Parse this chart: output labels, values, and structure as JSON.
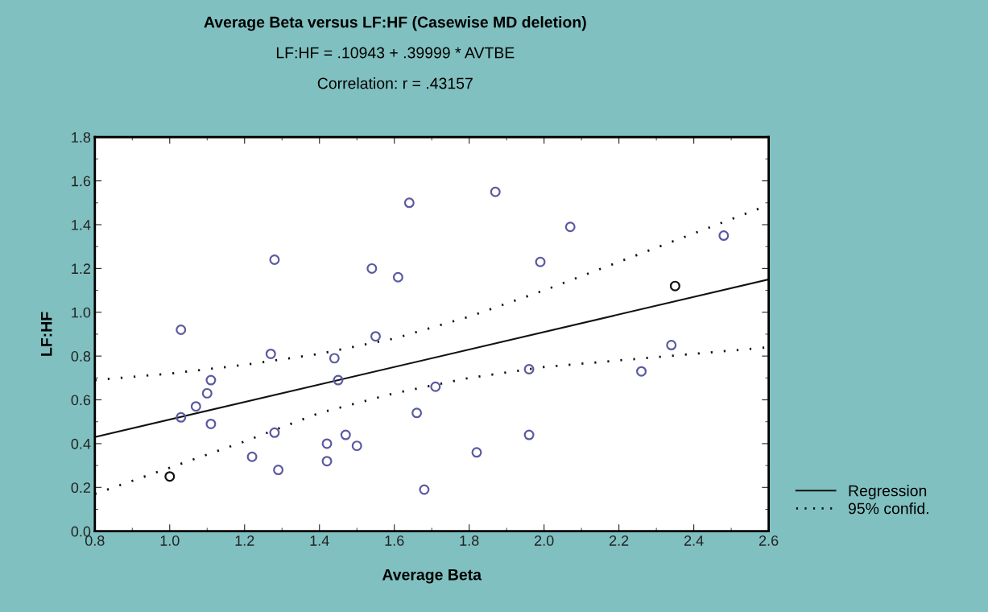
{
  "chart_data": {
    "type": "scatter",
    "title": "Average Beta versus LF:HF (Casewise MD deletion)",
    "subtitle": "LF:HF = .10943 + .39999 * AVTBE",
    "annotations": [
      "Correlation: r = .43157"
    ],
    "xlabel": "Average Beta",
    "ylabel": "LF:HF",
    "xlim": [
      0.8,
      2.6
    ],
    "ylim": [
      0,
      1.8
    ],
    "xticks": [
      {
        "value": 0.8,
        "label": "0.8"
      },
      {
        "value": 1,
        "label": "1.0"
      },
      {
        "value": 1.2,
        "label": "1.2"
      },
      {
        "value": 1.4,
        "label": "1.4"
      },
      {
        "value": 1.6,
        "label": "1.6"
      },
      {
        "value": 1.8,
        "label": "1.8"
      },
      {
        "value": 2,
        "label": "2.0"
      },
      {
        "value": 2.2,
        "label": "2.2"
      },
      {
        "value": 2.4,
        "label": "2.4"
      },
      {
        "value": 2.6,
        "label": "2.6"
      }
    ],
    "yticks": [
      {
        "value": 0,
        "label": "0.0"
      },
      {
        "value": 0.2,
        "label": "0.2"
      },
      {
        "value": 0.4,
        "label": "0.4"
      },
      {
        "value": 0.6,
        "label": "0.6"
      },
      {
        "value": 0.8,
        "label": "0.8"
      },
      {
        "value": 1,
        "label": "1.0"
      },
      {
        "value": 1.2,
        "label": "1.2"
      },
      {
        "value": 1.4,
        "label": "1.4"
      },
      {
        "value": 1.6,
        "label": "1.6"
      },
      {
        "value": 1.8,
        "label": "1.8"
      }
    ],
    "grid": false,
    "legend": "bottom right",
    "series": [
      {
        "marker": "circle",
        "x": [
          1.0,
          1.03,
          1.03,
          1.07,
          1.1,
          1.11,
          1.11,
          1.22,
          1.27,
          1.28,
          1.28,
          1.29,
          1.42,
          1.42,
          1.44,
          1.45,
          1.47,
          1.5,
          1.54,
          1.55,
          1.61,
          1.64,
          1.87,
          1.66,
          1.68,
          1.71,
          1.82,
          1.96,
          1.96,
          1.99,
          2.07,
          2.26,
          2.34,
          2.35,
          2.48
        ],
        "values": [
          0.25,
          0.92,
          0.52,
          0.57,
          0.63,
          0.69,
          0.49,
          0.34,
          0.81,
          1.24,
          0.45,
          0.28,
          0.4,
          0.32,
          0.79,
          0.69,
          0.44,
          0.39,
          1.2,
          0.89,
          1.16,
          1.5,
          1.55,
          0.54,
          0.19,
          0.66,
          0.36,
          0.44,
          0.74,
          1.23,
          1.39,
          0.73,
          0.85,
          1.12,
          1.35
        ],
        "colors": [
          "#111111",
          "#5a5aa0",
          "#5a5aa0",
          "#5a5aa0",
          "#5a5aa0",
          "#5a5aa0",
          "#5a5aa0",
          "#5a5aa0",
          "#5a5aa0",
          "#5a5aa0",
          "#5a5aa0",
          "#5a5aa0",
          "#5a5aa0",
          "#5a5aa0",
          "#5a5aa0",
          "#5a5aa0",
          "#5a5aa0",
          "#5a5aa0",
          "#5a5aa0",
          "#5a5aa0",
          "#5a5aa0",
          "#5a5aa0",
          "#5a5aa0",
          "#5a5aa0",
          "#5a5aa0",
          "#5a5aa0",
          "#5a5aa0",
          "#5a5aa0",
          "#5a5aa0",
          "#5a5aa0",
          "#5a5aa0",
          "#5a5aa0",
          "#5a5aa0",
          "#111111",
          "#5a5aa0"
        ]
      },
      {
        "type": "line",
        "name": "Regression",
        "color": "#111111",
        "line_style": "solid",
        "x": [
          0.8,
          2.6
        ],
        "values": [
          0.43,
          1.15
        ]
      },
      {
        "type": "line",
        "name": "95% confid.",
        "color": "#111111",
        "line_style": "dotted",
        "x": [
          0.8,
          1.0,
          1.2,
          1.4,
          1.6,
          1.8,
          2.0,
          2.2,
          2.4,
          2.6
        ],
        "values": [
          0.69,
          0.72,
          0.76,
          0.81,
          0.88,
          0.98,
          1.1,
          1.23,
          1.36,
          1.49
        ]
      },
      {
        "type": "line",
        "color": "#111111",
        "line_style": "dotted",
        "x": [
          0.8,
          1.0,
          1.2,
          1.4,
          1.6,
          1.8,
          2.0,
          2.2,
          2.4,
          2.6
        ],
        "values": [
          0.17,
          0.29,
          0.41,
          0.54,
          0.63,
          0.7,
          0.75,
          0.78,
          0.81,
          0.84
        ]
      }
    ]
  }
}
